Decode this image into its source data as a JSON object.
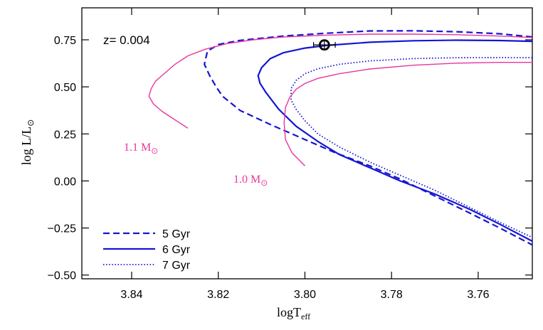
{
  "chart_data": {
    "type": "line",
    "xlabel": "logT",
    "xlabel_sub": "eff",
    "ylabel": "log  L/L",
    "ylabel_sym": "⊙",
    "xlim": [
      3.8515,
      3.7475
    ],
    "ylim": [
      -0.52,
      0.92
    ],
    "x_ticks": [
      3.84,
      3.82,
      3.8,
      3.78,
      3.76
    ],
    "x_tick_labels": [
      "3.84",
      "3.82",
      "3.80",
      "3.78",
      "3.76"
    ],
    "y_ticks": [
      0.75,
      0.5,
      0.25,
      0.0,
      -0.25,
      -0.5
    ],
    "y_tick_labels": [
      "0.75",
      "0.50",
      "0.25",
      "0.00",
      "−0.25",
      "−0.50"
    ],
    "annotation": "z= 0.004",
    "legend_position": "bottom-left",
    "series": [
      {
        "name": "5 Gyr",
        "style": "dashed",
        "color": "#1515d4",
        "width": 2.2,
        "x": [
          3.7475,
          3.755,
          3.765,
          3.775,
          3.785,
          3.795,
          3.805,
          3.815,
          3.82,
          3.8225,
          3.8232,
          3.822,
          3.8205,
          3.819,
          3.815,
          3.808,
          3.8,
          3.793,
          3.785,
          3.778,
          3.77,
          3.762,
          3.755,
          3.7475
        ],
        "y": [
          0.765,
          0.782,
          0.793,
          0.798,
          0.797,
          0.785,
          0.77,
          0.747,
          0.725,
          0.69,
          0.62,
          0.56,
          0.5,
          0.45,
          0.375,
          0.3,
          0.22,
          0.15,
          0.08,
          0.01,
          -0.08,
          -0.17,
          -0.25,
          -0.34
        ]
      },
      {
        "name": "6 Gyr",
        "style": "solid",
        "color": "#1515d4",
        "width": 2.2,
        "x": [
          3.7475,
          3.755,
          3.765,
          3.775,
          3.785,
          3.795,
          3.8,
          3.805,
          3.808,
          3.81,
          3.8108,
          3.8104,
          3.809,
          3.806,
          3.802,
          3.797,
          3.792,
          3.785,
          3.778,
          3.77,
          3.762,
          3.755,
          3.7475
        ],
        "y": [
          0.742,
          0.746,
          0.748,
          0.745,
          0.737,
          0.72,
          0.706,
          0.681,
          0.65,
          0.602,
          0.56,
          0.52,
          0.47,
          0.38,
          0.29,
          0.21,
          0.14,
          0.07,
          0.0,
          -0.07,
          -0.15,
          -0.23,
          -0.32
        ]
      },
      {
        "name": "7 Gyr",
        "style": "dotted",
        "color": "#1515d4",
        "width": 1.8,
        "x": [
          3.7475,
          3.755,
          3.765,
          3.775,
          3.785,
          3.792,
          3.797,
          3.8,
          3.802,
          3.8032,
          3.8032,
          3.802,
          3.8,
          3.797,
          3.792,
          3.785,
          3.778,
          3.77,
          3.762,
          3.755,
          3.7475
        ],
        "y": [
          0.655,
          0.656,
          0.655,
          0.65,
          0.638,
          0.62,
          0.596,
          0.57,
          0.535,
          0.49,
          0.43,
          0.38,
          0.32,
          0.25,
          0.18,
          0.1,
          0.03,
          -0.05,
          -0.14,
          -0.22,
          -0.3
        ]
      },
      {
        "name": "1.0 M",
        "style": "solid",
        "color": "#e8359c",
        "width": 1.4,
        "x": [
          3.7475,
          3.755,
          3.765,
          3.775,
          3.785,
          3.792,
          3.797,
          3.8,
          3.802,
          3.8035,
          3.8045,
          3.8048,
          3.8045,
          3.803,
          3.8
        ],
        "y": [
          0.63,
          0.63,
          0.626,
          0.615,
          0.595,
          0.57,
          0.545,
          0.518,
          0.488,
          0.445,
          0.39,
          0.31,
          0.22,
          0.15,
          0.08
        ]
      },
      {
        "name": "1.1 M",
        "style": "solid",
        "color": "#e8359c",
        "width": 1.4,
        "x": [
          3.7475,
          3.755,
          3.765,
          3.775,
          3.785,
          3.795,
          3.805,
          3.812,
          3.818,
          3.823,
          3.827,
          3.83,
          3.832,
          3.8335,
          3.8345,
          3.8355,
          3.836,
          3.835,
          3.833,
          3.831,
          3.829,
          3.827
        ],
        "y": [
          0.762,
          0.77,
          0.777,
          0.78,
          0.78,
          0.775,
          0.765,
          0.75,
          0.73,
          0.7,
          0.665,
          0.62,
          0.58,
          0.55,
          0.53,
          0.49,
          0.45,
          0.41,
          0.37,
          0.34,
          0.31,
          0.28
        ]
      }
    ],
    "mass_labels": [
      {
        "text": "1.1  M",
        "sym": "⊙",
        "x": 3.8418,
        "y": 0.16,
        "color": "#e8359c"
      },
      {
        "text": "1.0  M",
        "sym": "⊙",
        "x": 3.8165,
        "y": -0.01,
        "color": "#e8359c"
      }
    ],
    "data_point": {
      "x": 3.7955,
      "y": 0.723,
      "xerr": 0.0025,
      "yerr": 0.025
    }
  }
}
